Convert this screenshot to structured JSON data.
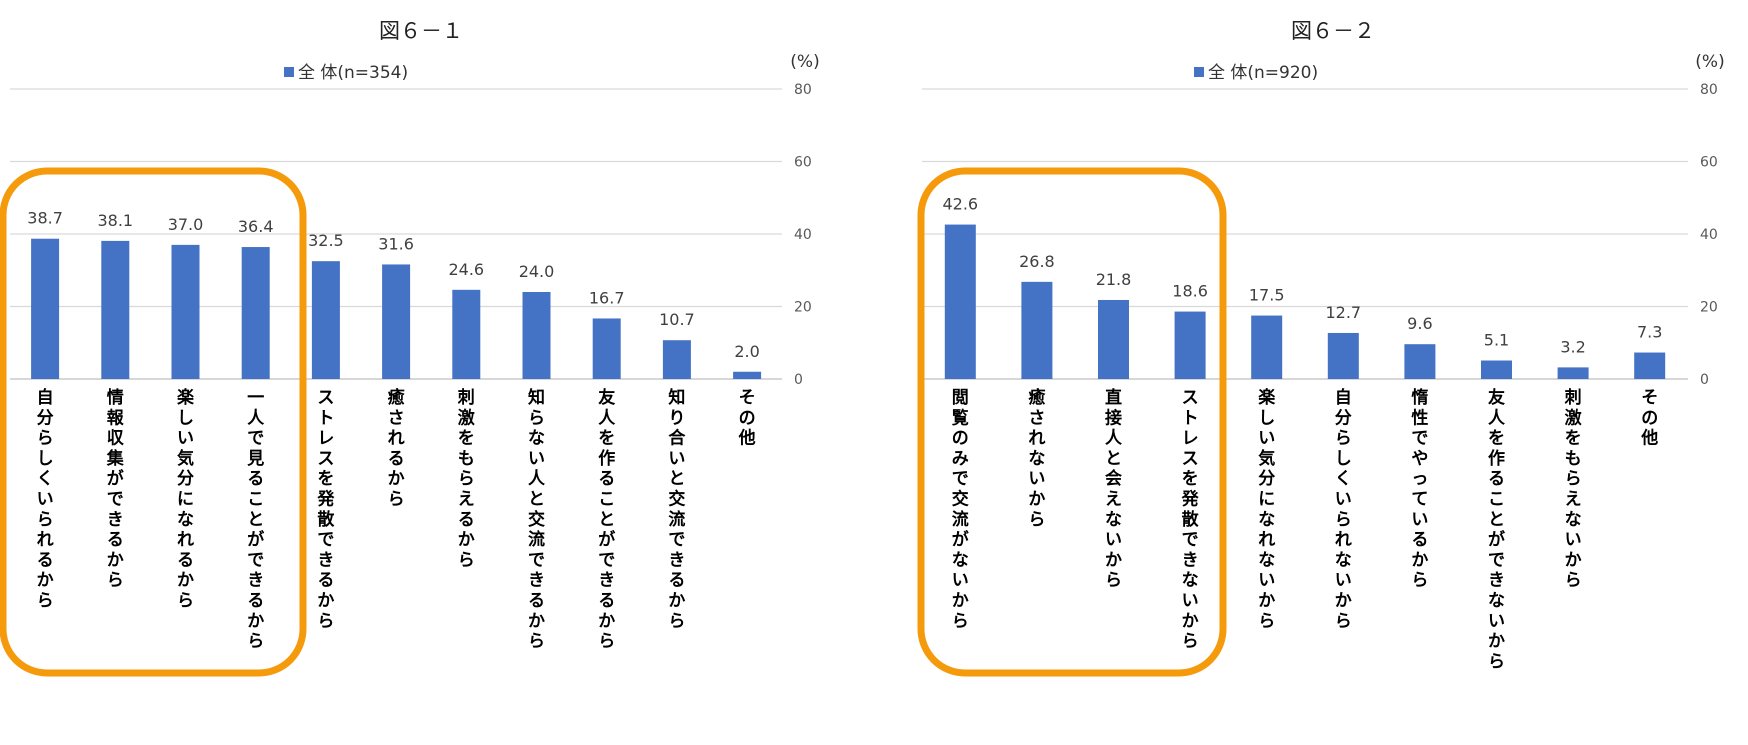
{
  "chart_data": [
    {
      "type": "bar",
      "title": "図６－１",
      "unit": "(%)",
      "legend": {
        "label": "全 体(n=354)",
        "placement": "top"
      },
      "ylim": [
        0,
        80
      ],
      "yticks": [
        "0",
        "20",
        "40",
        "60",
        "80"
      ],
      "grid": true,
      "categories": [
        "自分らしくいられるから",
        "情報収集ができるから",
        "楽しい気分になれるから",
        "一人で見ることができるから",
        "ストレスを発散できるから",
        "癒されるから",
        "刺激をもらえるから",
        "知らない人と交流できるから",
        "友人を作ることができるから",
        "知り合いと交流できるから",
        "その他"
      ],
      "series": [
        {
          "name": "全 体(n=354)",
          "values": [
            38.7,
            38.1,
            37.0,
            36.4,
            32.5,
            31.6,
            24.6,
            24.0,
            16.7,
            10.7,
            2.0
          ]
        }
      ],
      "value_labels": [
        "38.7",
        "38.1",
        "37.0",
        "36.4",
        "32.5",
        "31.6",
        "24.6",
        "24.0",
        "16.7",
        "10.7",
        "2.0"
      ],
      "highlight_count": 4,
      "bar_color": "#4472C4",
      "highlight_color": "#F59A0B"
    },
    {
      "type": "bar",
      "title": "図６－２",
      "unit": "(%)",
      "legend": {
        "label": "全 体(n=920)",
        "placement": "top"
      },
      "ylim": [
        0,
        80
      ],
      "yticks": [
        "0",
        "20",
        "40",
        "60",
        "80"
      ],
      "grid": true,
      "categories": [
        "閲覧のみで交流がないから",
        "癒されないから",
        "直接人と会えないから",
        "ストレスを発散できないから",
        "楽しい気分になれないから",
        "自分らしくいられないから",
        "惰性でやっているから",
        "友人を作ることができないから",
        "刺激をもらえないから",
        "その他"
      ],
      "series": [
        {
          "name": "全 体(n=920)",
          "values": [
            42.6,
            26.8,
            21.8,
            18.6,
            17.5,
            12.7,
            9.6,
            5.1,
            3.2,
            7.3
          ]
        }
      ],
      "value_labels": [
        "42.6",
        "26.8",
        "21.8",
        "18.6",
        "17.5",
        "12.7",
        "9.6",
        "5.1",
        "3.2",
        "7.3"
      ],
      "highlight_count": 4,
      "bar_color": "#4472C4",
      "highlight_color": "#F59A0B"
    }
  ]
}
